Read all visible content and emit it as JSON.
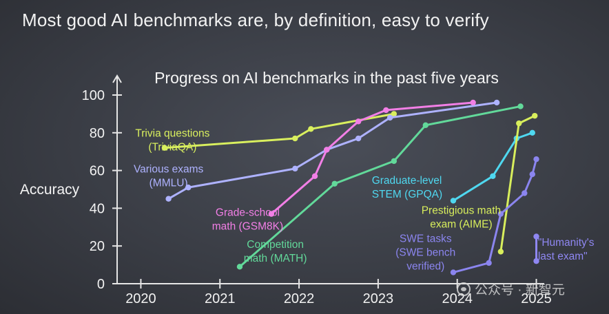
{
  "slide": {
    "title": "Most good AI benchmarks are, by definition, easy to verify"
  },
  "watermark": {
    "text": "公众号 · 新智元"
  },
  "chart_data": {
    "type": "line",
    "title": "Progress on AI benchmarks in the past five years",
    "ylabel": "Accuracy",
    "xlabel": "",
    "xlim": [
      2019.7,
      2025.1
    ],
    "ylim": [
      0,
      100
    ],
    "xticks": [
      2020,
      2021,
      2022,
      2023,
      2024,
      2025
    ],
    "xtick_labels": [
      "2020",
      "2021",
      "2022",
      "2023",
      "2024",
      "2025"
    ],
    "yticks": [
      0,
      20,
      40,
      60,
      80,
      100
    ],
    "ytick_labels": [
      "0",
      "20",
      "40",
      "60",
      "80",
      "100"
    ],
    "series": [
      {
        "name": "Trivia questions (TriviaQA)",
        "label_lines": [
          "Trivia questions",
          "(TriviaQA)"
        ],
        "color": "#d9ef5e",
        "label_anchor": [
          2020.4,
          78
        ],
        "label_align": "middle",
        "points": [
          [
            2020.3,
            72
          ],
          [
            2021.95,
            77
          ],
          [
            2022.15,
            82
          ],
          [
            2023.2,
            90
          ]
        ]
      },
      {
        "name": "Various exams (MMLU)",
        "label_lines": [
          "Various exams",
          "(MMLU)"
        ],
        "color": "#aeb2ff",
        "label_anchor": [
          2020.35,
          59
        ],
        "label_align": "middle",
        "points": [
          [
            2020.35,
            45
          ],
          [
            2020.6,
            51
          ],
          [
            2021.95,
            61
          ],
          [
            2022.35,
            71
          ],
          [
            2022.75,
            77
          ],
          [
            2023.15,
            88
          ],
          [
            2024.5,
            96
          ]
        ]
      },
      {
        "name": "Grade-school math (GSM8K)",
        "label_lines": [
          "Grade-school",
          "math (GSM8K)"
        ],
        "color": "#f27fe6",
        "label_anchor": [
          2021.35,
          36
        ],
        "label_align": "middle",
        "points": [
          [
            2021.65,
            37
          ],
          [
            2022.2,
            57
          ],
          [
            2022.35,
            71
          ],
          [
            2022.75,
            86
          ],
          [
            2023.1,
            92
          ],
          [
            2024.2,
            96
          ]
        ]
      },
      {
        "name": "Competition math (MATH)",
        "label_lines": [
          "Competition",
          "math (MATH)"
        ],
        "color": "#62d99a",
        "label_anchor": [
          2021.7,
          19
        ],
        "label_align": "middle",
        "points": [
          [
            2021.25,
            9
          ],
          [
            2022.45,
            53
          ],
          [
            2023.2,
            65
          ],
          [
            2023.6,
            84
          ],
          [
            2024.8,
            94
          ]
        ]
      },
      {
        "name": "Graduate-level STEM (GPQA)",
        "label_lines": [
          "Graduate-level",
          "STEM (GPQA)"
        ],
        "color": "#4fd8f0",
        "label_anchor": [
          2022.92,
          53
        ],
        "label_align": "start",
        "points": [
          [
            2023.95,
            44
          ],
          [
            2024.45,
            57
          ],
          [
            2024.75,
            77
          ],
          [
            2024.95,
            80
          ]
        ]
      },
      {
        "name": "Prestigious math exam (AIME)",
        "label_lines": [
          "Prestigious math",
          "exam (AIME)"
        ],
        "color": "#d8ee5c",
        "label_anchor": [
          2024.05,
          37
        ],
        "label_align": "middle",
        "points": [
          [
            2024.55,
            17
          ],
          [
            2024.78,
            85
          ],
          [
            2024.98,
            89
          ]
        ]
      },
      {
        "name": "SWE tasks (SWE bench verified)",
        "label_lines": [
          "SWE tasks",
          "(SWE bench",
          "verified)"
        ],
        "color": "#8b85ef",
        "label_anchor": [
          2023.6,
          22
        ],
        "label_align": "middle",
        "points": [
          [
            2023.95,
            6
          ],
          [
            2024.4,
            11
          ],
          [
            2024.55,
            37
          ],
          [
            2024.85,
            48
          ],
          [
            2024.95,
            58
          ],
          [
            2025.0,
            66
          ]
        ]
      },
      {
        "name": "\"Humanity's last exam\"",
        "label_lines": [
          "\"Humanity's",
          "last exam\""
        ],
        "color": "#8f87f2",
        "label_anchor": [
          2025.02,
          20
        ],
        "label_align": "start",
        "points": [
          [
            2025.0,
            25
          ],
          [
            2025.0,
            12
          ]
        ]
      }
    ]
  }
}
